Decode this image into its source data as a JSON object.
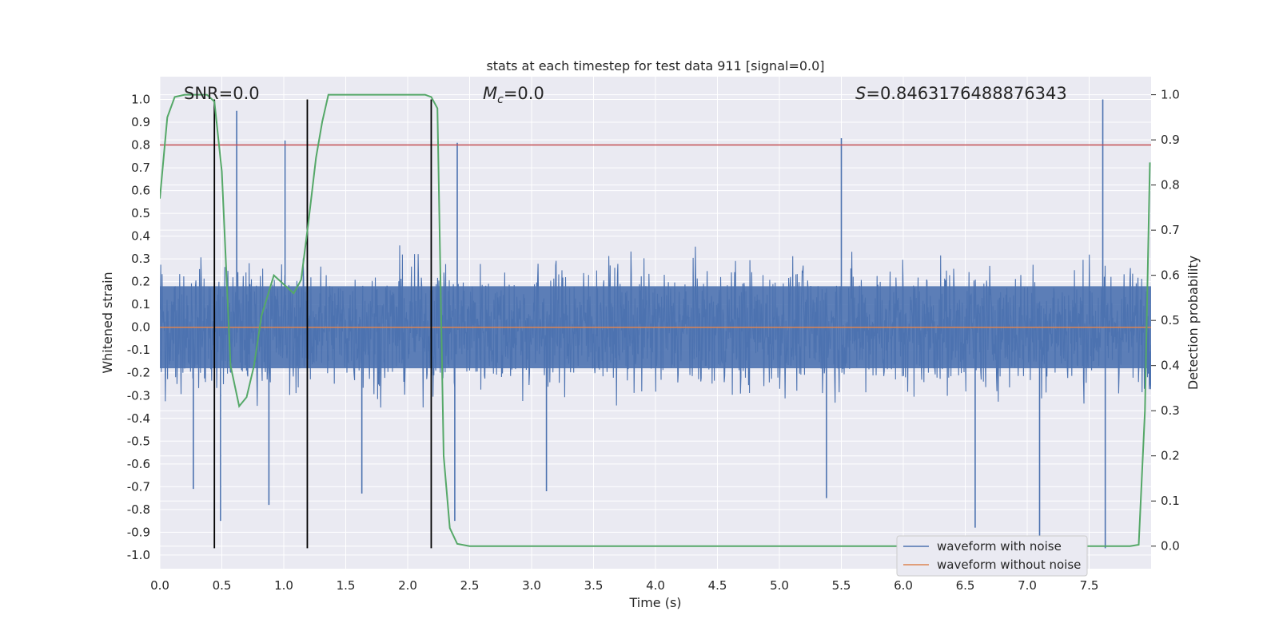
{
  "chart_data": {
    "type": "line",
    "title": "stats at each timestep for test data 911 [signal=0.0]",
    "xlabel": "Time (s)",
    "ylabel": "Whitened strain",
    "ylabel_right": "Detection probability",
    "xlim": [
      0.0,
      8.0
    ],
    "ylim": [
      -1.06,
      1.1
    ],
    "ylim_right": [
      -0.05,
      1.04
    ],
    "x_ticks": [
      "0.0",
      "0.5",
      "1.0",
      "1.5",
      "2.0",
      "2.5",
      "3.0",
      "3.5",
      "4.0",
      "4.5",
      "5.0",
      "5.5",
      "6.0",
      "6.5",
      "7.0",
      "7.5"
    ],
    "y_ticks": [
      "1.0",
      "0.9",
      "0.8",
      "0.7",
      "0.6",
      "0.5",
      "0.4",
      "0.3",
      "0.2",
      "0.1",
      "0.0",
      "-0.1",
      "-0.2",
      "-0.3",
      "-0.4",
      "-0.5",
      "-0.6",
      "-0.7",
      "-0.8",
      "-0.9",
      "-1.0"
    ],
    "y_ticks_right": [
      "1.0",
      "0.9",
      "0.8",
      "0.7",
      "0.6",
      "0.5",
      "0.4",
      "0.3",
      "0.2",
      "0.1",
      "0.0"
    ],
    "grid": true,
    "legend_position": "lower-right",
    "annotations": {
      "snr": "SNR=0.0",
      "mc_symbol": "M",
      "mc_sub": "c",
      "mc_value": "=0.0",
      "s_symbol": "S",
      "s_value": "=0.8463176488876343"
    },
    "threshold_line": {
      "y": 0.8,
      "color": "#c44e52"
    },
    "vertical_markers": {
      "x": [
        0.44,
        1.19,
        2.19
      ],
      "y_range": [
        -0.97,
        1.0
      ],
      "color": "#000000"
    },
    "series": [
      {
        "name": "waveform with noise",
        "color": "#4c72b0",
        "kind": "noise",
        "amplitude_typical": 0.45,
        "spikes": [
          {
            "x": 0.62,
            "y": 0.95
          },
          {
            "x": 1.01,
            "y": 0.82
          },
          {
            "x": 2.4,
            "y": 0.81
          },
          {
            "x": 5.5,
            "y": 0.83
          },
          {
            "x": 7.61,
            "y": 1.0
          },
          {
            "x": 7.63,
            "y": -0.97
          },
          {
            "x": 0.49,
            "y": -0.85
          },
          {
            "x": 2.38,
            "y": -0.85
          },
          {
            "x": 6.58,
            "y": -0.88
          },
          {
            "x": 7.1,
            "y": -0.93
          },
          {
            "x": 0.88,
            "y": -0.78
          },
          {
            "x": 0.27,
            "y": -0.71
          },
          {
            "x": 1.63,
            "y": -0.73
          },
          {
            "x": 3.12,
            "y": -0.72
          },
          {
            "x": 5.38,
            "y": -0.75
          }
        ]
      },
      {
        "name": "waveform without noise",
        "color": "#dd8452",
        "x": [
          0.0,
          8.0
        ],
        "y": [
          0.0,
          0.0
        ]
      },
      {
        "name": "detection probability",
        "color": "#55a868",
        "axis": "right",
        "show_in_legend": false,
        "x": [
          0.0,
          0.06,
          0.12,
          0.2,
          0.3,
          0.38,
          0.44,
          0.5,
          0.57,
          0.64,
          0.7,
          0.76,
          0.82,
          0.92,
          1.0,
          1.08,
          1.14,
          1.2,
          1.26,
          1.31,
          1.36,
          1.45,
          1.6,
          1.8,
          2.0,
          2.14,
          2.19,
          2.24,
          2.29,
          2.34,
          2.4,
          2.5,
          3.0,
          4.0,
          5.0,
          6.0,
          7.0,
          7.7,
          7.83,
          7.9,
          7.95,
          7.99
        ],
        "y": [
          0.77,
          0.95,
          0.995,
          1.0,
          1.0,
          1.0,
          0.985,
          0.83,
          0.4,
          0.31,
          0.33,
          0.4,
          0.51,
          0.6,
          0.58,
          0.56,
          0.59,
          0.72,
          0.86,
          0.94,
          1.0,
          1.0,
          1.0,
          1.0,
          1.0,
          1.0,
          0.995,
          0.97,
          0.2,
          0.04,
          0.005,
          0.0,
          0.0,
          0.0,
          0.0,
          0.0,
          0.0,
          0.0,
          0.0,
          0.003,
          0.3,
          0.85
        ]
      }
    ]
  }
}
